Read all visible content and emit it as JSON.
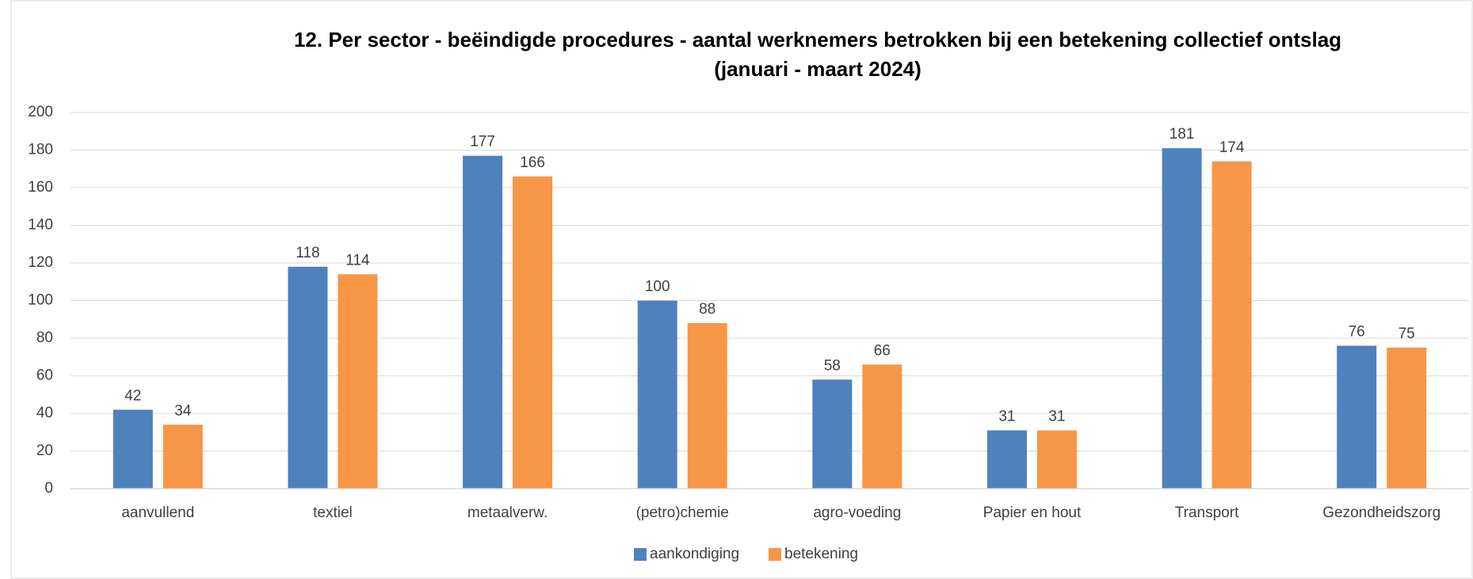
{
  "chart_data": {
    "type": "bar",
    "title": "12. Per sector - beëindigde procedures - aantal werknemers betrokken bij een betekening collectief ontslag",
    "subtitle": "(januari - maart 2024)",
    "categories": [
      "aanvullend",
      "textiel",
      "metaalverw.",
      "(petro)chemie",
      "agro-voeding",
      "Papier en hout",
      "Transport",
      "Gezondheidszorg"
    ],
    "series": [
      {
        "name": "aankondiging",
        "color": "#4f81bd",
        "values": [
          42,
          118,
          177,
          100,
          58,
          31,
          181,
          76
        ]
      },
      {
        "name": "betekening",
        "color": "#f79646",
        "values": [
          34,
          114,
          166,
          88,
          66,
          31,
          174,
          75
        ]
      }
    ],
    "ylim": [
      0,
      200
    ],
    "yticks": [
      0,
      20,
      40,
      60,
      80,
      100,
      120,
      140,
      160,
      180,
      200
    ],
    "grid": true,
    "legend": "bottom"
  }
}
